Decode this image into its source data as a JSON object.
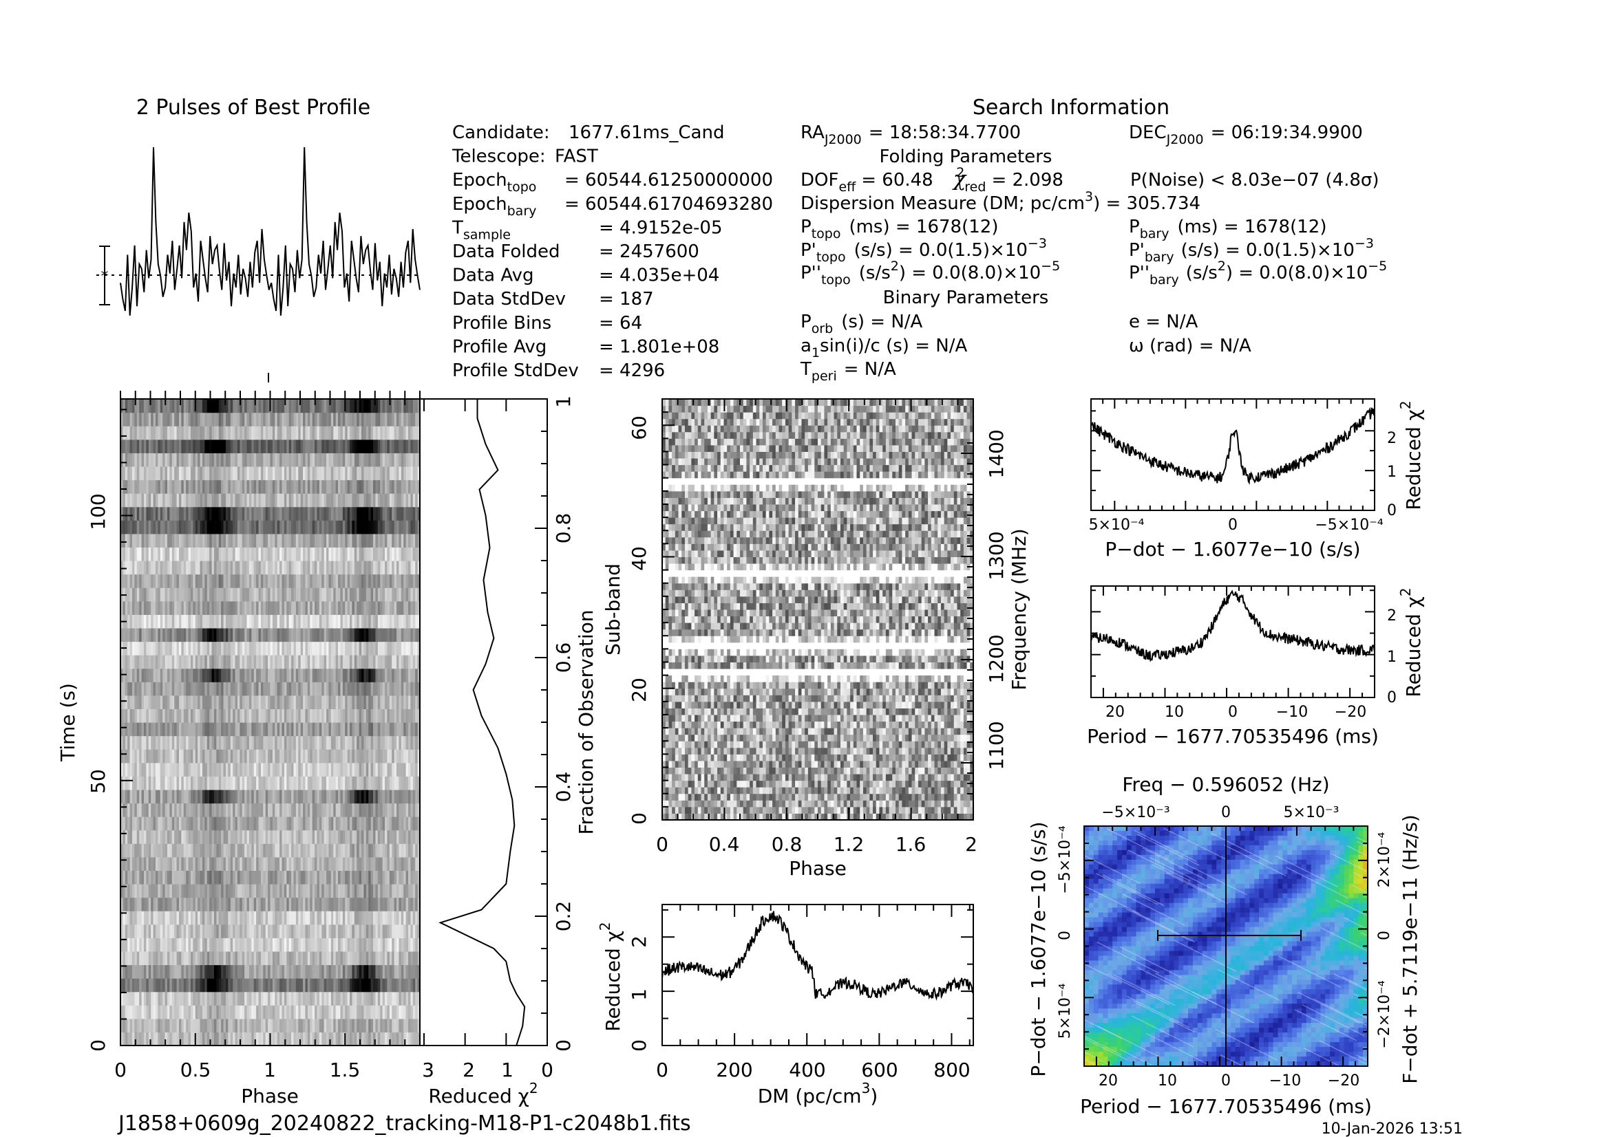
{
  "footer": {
    "filename": "J1858+0609g_20240822_tracking-M18-P1-c2048b1.fits",
    "timestamp": "10-Jan-2026 13:51"
  },
  "info": {
    "heading": "Search Information",
    "left": [
      {
        "label": "Candidate:",
        "value": "1677.61ms_Cand"
      },
      {
        "label": "Telescope:",
        "value": "FAST"
      },
      {
        "label": "Epoch",
        "sub": "topo",
        "value": "= 60544.61250000000"
      },
      {
        "label": "Epoch",
        "sub": "bary",
        "value": "= 60544.61704693280"
      },
      {
        "label": "T",
        "sub": "sample",
        "value": "=   4.9152e-05"
      },
      {
        "label": "Data Folded",
        "value": "=   2457600"
      },
      {
        "label": "Data Avg",
        "value": "=   4.035e+04"
      },
      {
        "label": "Data StdDev",
        "value": "=   187"
      },
      {
        "label": "Profile Bins",
        "value": "=   64"
      },
      {
        "label": "Profile Avg",
        "value": "=   1.801e+08"
      },
      {
        "label": "Profile StdDev",
        "value": "=   4296"
      }
    ],
    "ra": {
      "label": "RA",
      "sub": "J2000",
      "value": "= 18:58:34.7700"
    },
    "dec": {
      "label": "DEC",
      "sub": "J2000",
      "value": "= 06:19:34.9900"
    },
    "folding_heading": "Folding Parameters",
    "dof": {
      "label": "DOF",
      "sub": "eff",
      "value": "= 60.48"
    },
    "chi_red": {
      "sub": "red",
      "value": "= 2.098"
    },
    "pnoise": "P(Noise) < 8.03e−07   (4.8σ)",
    "dm_line": {
      "text": "Dispersion Measure (DM; pc/cm",
      "sup": "3",
      "value": ") = 305.734"
    },
    "ptopo": {
      "label": "P",
      "sub": "topo",
      "value": "(ms) =   1678(12)"
    },
    "pbary": {
      "label": "P",
      "sub": "bary",
      "value": "(ms) =   1678(12)"
    },
    "pdtopo": {
      "label": "P'",
      "sub": "topo",
      "value": "(s/s) = 0.0(1.5)×10",
      "sup": "−3"
    },
    "pdbary": {
      "label": "P'",
      "sub": "bary",
      "value": "(s/s) = 0.0(1.5)×10",
      "sup": "−3"
    },
    "pddtopo": {
      "label": "P''",
      "sub": "topo",
      "unit": "(s/s",
      "unitsup": "2",
      "value": ") = 0.0(8.0)×10",
      "sup": "−5"
    },
    "pddbary": {
      "label": "P''",
      "sub": "bary",
      "unit": "(s/s",
      "unitsup": "2",
      "value": ") = 0.0(8.0)×10",
      "sup": "−5"
    },
    "binary_heading": "Binary Parameters",
    "porb": {
      "label": "P",
      "sub": "orb",
      "value": "(s) = N/A"
    },
    "asini": {
      "label": "a",
      "sub": "1",
      "value": "sin(i)/c (s) = N/A"
    },
    "tperi": {
      "label": "T",
      "sub": "peri",
      "value": "= N/A"
    },
    "ecc": "e = N/A",
    "omega": "ω (rad) = N/A"
  },
  "chart_data": [
    {
      "id": "profile",
      "type": "line",
      "title": "2 Pulses of Best Profile",
      "x_range": [
        0,
        2
      ],
      "bins": 64,
      "values": [
        0.32,
        0.25,
        0.2,
        0.44,
        0.18,
        0.3,
        0.48,
        0.22,
        0.4,
        0.38,
        0.28,
        0.46,
        0.34,
        0.42,
        0.9,
        0.58,
        0.4,
        0.35,
        0.26,
        0.3,
        0.44,
        0.36,
        0.5,
        0.29,
        0.38,
        0.48,
        0.34,
        0.58,
        0.46,
        0.62,
        0.54,
        0.3,
        0.36,
        0.24,
        0.5,
        0.42,
        0.34,
        0.28,
        0.52,
        0.4,
        0.46,
        0.48,
        0.37,
        0.29,
        0.49,
        0.33,
        0.41,
        0.22,
        0.36,
        0.3,
        0.44,
        0.27,
        0.38,
        0.34,
        0.26,
        0.41,
        0.3,
        0.45,
        0.5,
        0.32,
        0.55,
        0.42,
        0.35,
        0.29
      ]
    },
    {
      "id": "time_phase",
      "type": "heatmap",
      "xlabel": "Phase",
      "ylabel": "Time (s)",
      "x_range": [
        0,
        2
      ],
      "y_range": [
        0,
        122
      ],
      "xticks": [
        "0",
        "0.5",
        "1",
        "1.5"
      ],
      "yticks": [
        "0",
        "50",
        "100"
      ],
      "rows": 48
    },
    {
      "id": "time_chi2",
      "type": "line",
      "xlabel": "Reduced χ",
      "xlabel_sup": "2",
      "ylabel": "Fraction of Observation",
      "xticks": [
        "3",
        "2",
        "1",
        "0"
      ],
      "yticks": [
        "0",
        "0.2",
        "0.4",
        "0.6",
        "0.8",
        "1"
      ],
      "x_range": [
        3.1,
        0
      ],
      "points": [
        [
          0.75,
          0.0
        ],
        [
          0.6,
          0.03
        ],
        [
          0.55,
          0.06
        ],
        [
          0.75,
          0.08
        ],
        [
          0.9,
          0.1
        ],
        [
          1.0,
          0.13
        ],
        [
          1.3,
          0.15
        ],
        [
          2.6,
          0.19
        ],
        [
          1.6,
          0.21
        ],
        [
          1.0,
          0.25
        ],
        [
          0.9,
          0.3
        ],
        [
          0.8,
          0.34
        ],
        [
          0.85,
          0.38
        ],
        [
          1.0,
          0.42
        ],
        [
          1.2,
          0.46
        ],
        [
          1.6,
          0.51
        ],
        [
          1.8,
          0.55
        ],
        [
          1.5,
          0.59
        ],
        [
          1.3,
          0.63
        ],
        [
          1.45,
          0.67
        ],
        [
          1.55,
          0.72
        ],
        [
          1.4,
          0.77
        ],
        [
          1.5,
          0.82
        ],
        [
          1.65,
          0.86
        ],
        [
          1.2,
          0.89
        ],
        [
          1.5,
          0.93
        ],
        [
          1.7,
          0.97
        ],
        [
          1.7,
          1.0
        ]
      ]
    },
    {
      "id": "subband_phase",
      "type": "heatmap",
      "xlabel": "Phase",
      "ylabel": "Sub-band",
      "ylabel_right": "Frequency (MHz)",
      "x_range": [
        0,
        2
      ],
      "y_range": [
        0,
        64
      ],
      "xticks": [
        "0",
        "0.4",
        "0.8",
        "1.2",
        "1.6",
        "2"
      ],
      "yticks": [
        "0",
        "20",
        "40",
        "60"
      ],
      "yticks_right": [
        "1100",
        "1200",
        "1300",
        "1400"
      ],
      "masked_subbands": [
        22,
        26,
        37,
        51
      ]
    },
    {
      "id": "dm_chi2",
      "type": "line",
      "xlabel": "DM (pc/cm",
      "xlabel_sup": "3",
      "xlabel_end": ")",
      "ylabel": "Reduced χ",
      "ylabel_sup": "2",
      "x_range": [
        0,
        860
      ],
      "y_range": [
        0,
        2.6
      ],
      "xticks": [
        "0",
        "200",
        "400",
        "600",
        "800"
      ],
      "yticks": [
        "0",
        "1",
        "2"
      ],
      "peak": 300
    },
    {
      "id": "pdot_chi2",
      "type": "line",
      "xlabel": "P−dot − 1.6077e−10 (s/s)",
      "ylabel": "Reduced χ",
      "ylabel_sup": "2",
      "y_range": [
        0,
        2.8
      ],
      "xticks": [
        "5×10⁻⁴",
        "0",
        "−5×10⁻⁴"
      ],
      "yticks": [
        "0",
        "1",
        "2"
      ]
    },
    {
      "id": "period_chi2",
      "type": "line",
      "xlabel": "Period − 1677.70535496 (ms)",
      "ylabel": "Reduced χ",
      "ylabel_sup": "2",
      "x_range": [
        23,
        -23
      ],
      "y_range": [
        0,
        2.6
      ],
      "xticks": [
        "20",
        "10",
        "0",
        "−10",
        "−20"
      ],
      "yticks": [
        "0",
        "1",
        "2"
      ]
    },
    {
      "id": "p_pdot",
      "type": "heatmap",
      "title": "Freq − 0.596052 (Hz)",
      "xlabel": "Period − 1677.70535496 (ms)",
      "ylabel": "P−dot − 1.6077e−10 (s/s)",
      "ylabel_right": "F−dot + 5.7119e−11 (Hz/s)",
      "xticks": [
        "20",
        "10",
        "0",
        "−10",
        "−20"
      ],
      "xticks_top": [
        "−5×10⁻³",
        "0",
        "5×10⁻³"
      ],
      "yticks": [
        "5×10⁻⁴",
        "0",
        "−5×10⁻⁴"
      ],
      "yticks_right": [
        "−2×10⁻⁴",
        "0",
        "2×10⁻⁴"
      ]
    }
  ]
}
